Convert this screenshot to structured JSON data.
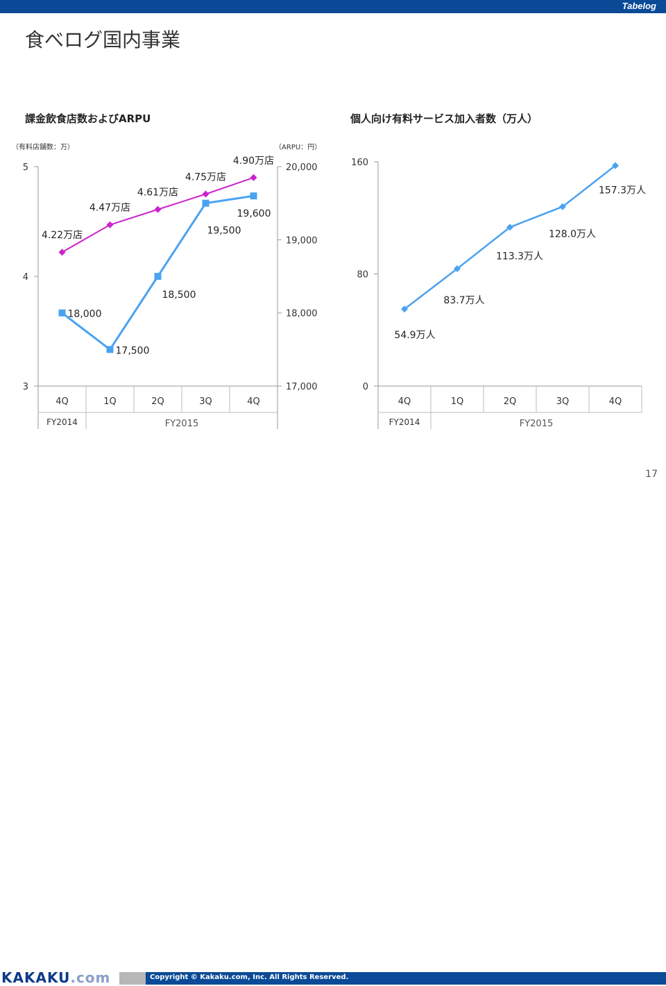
{
  "header": {
    "brand": "Tabelog",
    "title": "食べログ国内事業"
  },
  "left_chart_title": "課金飲食店数およびARPU",
  "left_unit_left": "（有料店舗数：万）",
  "left_unit_right": "（ARPU：円）",
  "right_chart_title": "個人向け有料サービス加入者数（万人）",
  "page_number": "17",
  "footer": {
    "logo_main": "KAKAKU",
    "logo_suffix": ".com",
    "copyright": "Copyright © Kakaku.com, Inc. All Rights Reserved."
  },
  "colors": {
    "stores": "#cc22cc",
    "arpu": "#4aa3f0",
    "subscribers": "#4aa3f0",
    "brand_blue": "#0a4a96"
  },
  "chart_data": [
    {
      "type": "line",
      "categories": [
        "4Q",
        "1Q",
        "2Q",
        "3Q",
        "4Q"
      ],
      "fiscal_groups": [
        {
          "label": "FY2014",
          "span": 1
        },
        {
          "label": "FY2015",
          "span": 4
        }
      ],
      "y_left": {
        "ticks": [
          "3",
          "4",
          "5"
        ],
        "range": [
          3,
          5
        ]
      },
      "y_right": {
        "ticks": [
          "17,000",
          "18,000",
          "19,000",
          "20,000"
        ],
        "range": [
          17000,
          20000
        ]
      },
      "series": [
        {
          "axis": "left",
          "values": [
            4.22,
            4.47,
            4.61,
            4.75,
            4.9
          ],
          "labels": [
            "4.22万店",
            "4.47万店",
            "4.61万店",
            "4.75万店",
            "4.90万店"
          ]
        },
        {
          "axis": "right",
          "values": [
            18000,
            17500,
            18500,
            19500,
            19600
          ],
          "labels": [
            "18,000",
            "17,500",
            "18,500",
            "19,500",
            "19,600"
          ]
        }
      ]
    },
    {
      "type": "line",
      "categories": [
        "4Q",
        "1Q",
        "2Q",
        "3Q",
        "4Q"
      ],
      "fiscal_groups": [
        {
          "label": "FY2014",
          "span": 1
        },
        {
          "label": "FY2015",
          "span": 4
        }
      ],
      "y": {
        "ticks": [
          "0",
          "80",
          "160"
        ],
        "range": [
          0,
          160
        ]
      },
      "series": [
        {
          "values": [
            54.9,
            83.7,
            113.3,
            128.0,
            157.3
          ],
          "labels": [
            "54.9万人",
            "83.7万人",
            "113.3万人",
            "128.0万人",
            "157.3万人"
          ]
        }
      ]
    }
  ]
}
